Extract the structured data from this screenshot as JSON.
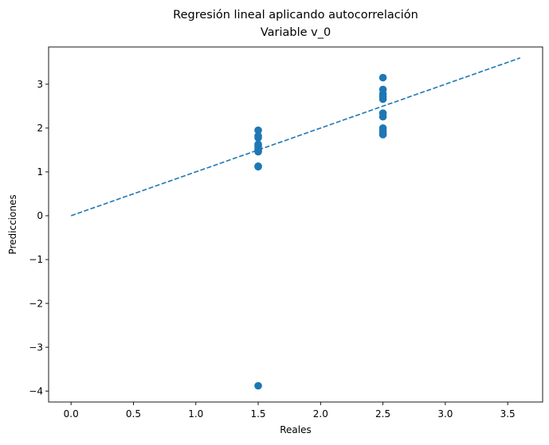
{
  "chart_data": {
    "type": "scatter",
    "title": "Regresión lineal aplicando autocorrelación",
    "subtitle": "Variable v_0",
    "xlabel": "Reales",
    "ylabel": "Predicciones",
    "xlim": [
      -0.18,
      3.78
    ],
    "ylim": [
      -4.25,
      3.85
    ],
    "xticks": [
      {
        "value": 0.0,
        "label": "0.0"
      },
      {
        "value": 0.5,
        "label": "0.5"
      },
      {
        "value": 1.0,
        "label": "1.0"
      },
      {
        "value": 1.5,
        "label": "1.5"
      },
      {
        "value": 2.0,
        "label": "2.0"
      },
      {
        "value": 2.5,
        "label": "2.5"
      },
      {
        "value": 3.0,
        "label": "3.0"
      },
      {
        "value": 3.5,
        "label": "3.5"
      }
    ],
    "yticks": [
      {
        "value": -4,
        "label": "−4"
      },
      {
        "value": -3,
        "label": "−3"
      },
      {
        "value": -2,
        "label": "−2"
      },
      {
        "value": -1,
        "label": "−1"
      },
      {
        "value": 0,
        "label": "0"
      },
      {
        "value": 1,
        "label": "1"
      },
      {
        "value": 2,
        "label": "2"
      },
      {
        "value": 3,
        "label": "3"
      }
    ],
    "grid": false,
    "points": {
      "color": "#1f77b4",
      "x": [
        1.5,
        1.5,
        1.5,
        1.5,
        1.5,
        1.5,
        1.5,
        1.5,
        1.5,
        1.5,
        1.5,
        1.5,
        2.5,
        2.5,
        2.5,
        2.5,
        2.5,
        2.5,
        2.5,
        2.5,
        2.5,
        2.5,
        2.5
      ],
      "y": [
        1.95,
        1.82,
        1.78,
        1.63,
        1.6,
        1.57,
        1.52,
        1.49,
        1.46,
        1.13,
        1.12,
        -3.88,
        3.15,
        2.88,
        2.78,
        2.72,
        2.66,
        2.34,
        2.26,
        2.0,
        1.93,
        1.88,
        1.85
      ]
    },
    "reference_line": {
      "style": "dashed",
      "color": "#1f77b4",
      "x": [
        0,
        3.6
      ],
      "y": [
        0,
        3.6
      ]
    }
  }
}
